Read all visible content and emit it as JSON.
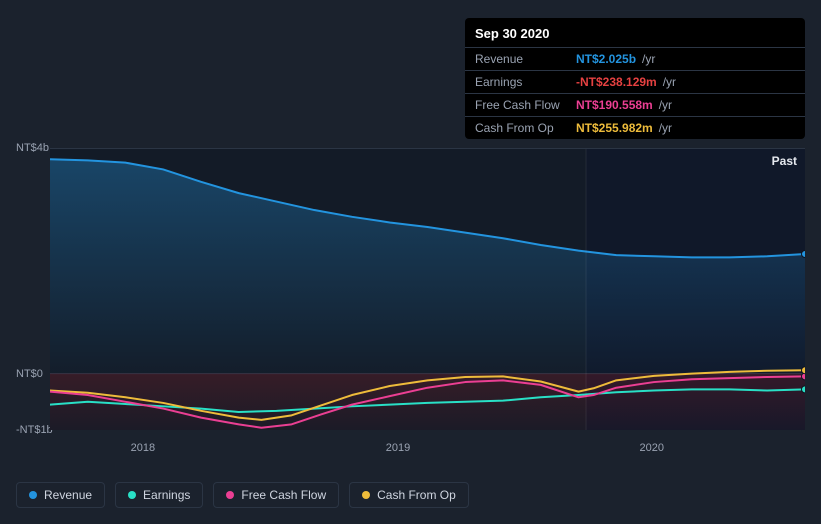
{
  "tooltip": {
    "date": "Sep 30 2020",
    "rows": [
      {
        "label": "Revenue",
        "value": "NT$2.025b",
        "unit": "/yr",
        "color": "#2394df"
      },
      {
        "label": "Earnings",
        "value": "-NT$238.129m",
        "unit": "/yr",
        "color": "#e64141"
      },
      {
        "label": "Free Cash Flow",
        "value": "NT$190.558m",
        "unit": "/yr",
        "color": "#eb3f93"
      },
      {
        "label": "Cash From Op",
        "value": "NT$255.982m",
        "unit": "/yr",
        "color": "#eebc3b"
      }
    ]
  },
  "chart": {
    "type": "area-line",
    "background": "#1b222d",
    "past_label": "Past",
    "past_split_x": 0.71,
    "y_axis": {
      "min": -1,
      "max": 4,
      "ticks": [
        {
          "v": 4,
          "label": "NT$4b"
        },
        {
          "v": 0,
          "label": "NT$0"
        },
        {
          "v": -1,
          "label": "-NT$1b"
        }
      ],
      "grid_color": "#2b3544"
    },
    "x_axis": {
      "ticks": [
        {
          "p": 0.123,
          "label": "2018"
        },
        {
          "p": 0.461,
          "label": "2019"
        },
        {
          "p": 0.797,
          "label": "2020"
        }
      ]
    },
    "legend": [
      {
        "key": "revenue",
        "label": "Revenue",
        "color": "#2394df"
      },
      {
        "key": "earnings",
        "label": "Earnings",
        "color": "#29e0c6"
      },
      {
        "key": "fcf",
        "label": "Free Cash Flow",
        "color": "#eb3f93"
      },
      {
        "key": "cfo",
        "label": "Cash From Op",
        "color": "#eebc3b"
      }
    ],
    "series": {
      "revenue": {
        "color": "#2394df",
        "fill_top": "rgba(35,148,223,0.35)",
        "fill_bottom": "rgba(35,148,223,0.02)",
        "line_width": 2,
        "data": [
          [
            0.0,
            3.8
          ],
          [
            0.05,
            3.78
          ],
          [
            0.1,
            3.74
          ],
          [
            0.15,
            3.62
          ],
          [
            0.2,
            3.4
          ],
          [
            0.25,
            3.2
          ],
          [
            0.3,
            3.05
          ],
          [
            0.35,
            2.9
          ],
          [
            0.4,
            2.78
          ],
          [
            0.45,
            2.68
          ],
          [
            0.5,
            2.6
          ],
          [
            0.55,
            2.5
          ],
          [
            0.6,
            2.4
          ],
          [
            0.65,
            2.28
          ],
          [
            0.7,
            2.18
          ],
          [
            0.75,
            2.1
          ],
          [
            0.8,
            2.08
          ],
          [
            0.85,
            2.06
          ],
          [
            0.9,
            2.06
          ],
          [
            0.95,
            2.08
          ],
          [
            1.0,
            2.12
          ]
        ]
      },
      "earnings": {
        "color": "#29e0c6",
        "fill_top": "rgba(41,224,198,0.18)",
        "fill_bottom": "rgba(41,224,198,0.0)",
        "line_width": 2,
        "data": [
          [
            0.0,
            -0.55
          ],
          [
            0.05,
            -0.5
          ],
          [
            0.1,
            -0.54
          ],
          [
            0.15,
            -0.58
          ],
          [
            0.2,
            -0.62
          ],
          [
            0.25,
            -0.68
          ],
          [
            0.3,
            -0.66
          ],
          [
            0.35,
            -0.62
          ],
          [
            0.4,
            -0.58
          ],
          [
            0.45,
            -0.55
          ],
          [
            0.5,
            -0.52
          ],
          [
            0.55,
            -0.5
          ],
          [
            0.6,
            -0.48
          ],
          [
            0.65,
            -0.42
          ],
          [
            0.7,
            -0.38
          ],
          [
            0.75,
            -0.33
          ],
          [
            0.8,
            -0.3
          ],
          [
            0.85,
            -0.28
          ],
          [
            0.9,
            -0.28
          ],
          [
            0.95,
            -0.3
          ],
          [
            1.0,
            -0.28
          ]
        ]
      },
      "fcf": {
        "color": "#eb3f93",
        "fill_top": "rgba(235,63,147,0.22)",
        "fill_bottom": "rgba(235,63,147,0.0)",
        "line_width": 2,
        "data": [
          [
            0.0,
            -0.32
          ],
          [
            0.05,
            -0.38
          ],
          [
            0.1,
            -0.5
          ],
          [
            0.15,
            -0.62
          ],
          [
            0.2,
            -0.78
          ],
          [
            0.25,
            -0.9
          ],
          [
            0.28,
            -0.96
          ],
          [
            0.32,
            -0.9
          ],
          [
            0.36,
            -0.72
          ],
          [
            0.4,
            -0.55
          ],
          [
            0.45,
            -0.4
          ],
          [
            0.5,
            -0.25
          ],
          [
            0.55,
            -0.15
          ],
          [
            0.6,
            -0.12
          ],
          [
            0.65,
            -0.2
          ],
          [
            0.7,
            -0.42
          ],
          [
            0.72,
            -0.38
          ],
          [
            0.75,
            -0.25
          ],
          [
            0.8,
            -0.15
          ],
          [
            0.85,
            -0.1
          ],
          [
            0.9,
            -0.08
          ],
          [
            0.95,
            -0.06
          ],
          [
            1.0,
            -0.05
          ]
        ]
      },
      "cfo": {
        "color": "#eebc3b",
        "fill_top": "rgba(238,188,59,0.20)",
        "fill_bottom": "rgba(238,188,59,0.0)",
        "line_width": 2,
        "data": [
          [
            0.0,
            -0.3
          ],
          [
            0.05,
            -0.34
          ],
          [
            0.1,
            -0.42
          ],
          [
            0.15,
            -0.52
          ],
          [
            0.2,
            -0.66
          ],
          [
            0.25,
            -0.78
          ],
          [
            0.28,
            -0.82
          ],
          [
            0.32,
            -0.74
          ],
          [
            0.36,
            -0.56
          ],
          [
            0.4,
            -0.38
          ],
          [
            0.45,
            -0.22
          ],
          [
            0.5,
            -0.12
          ],
          [
            0.55,
            -0.06
          ],
          [
            0.6,
            -0.05
          ],
          [
            0.65,
            -0.14
          ],
          [
            0.7,
            -0.32
          ],
          [
            0.72,
            -0.26
          ],
          [
            0.75,
            -0.12
          ],
          [
            0.8,
            -0.04
          ],
          [
            0.85,
            0.0
          ],
          [
            0.9,
            0.03
          ],
          [
            0.95,
            0.05
          ],
          [
            1.0,
            0.06
          ]
        ]
      }
    },
    "negative_band_fill": "rgba(180,30,40,0.22)",
    "future_overlay": "rgba(13,23,43,0.58)"
  }
}
